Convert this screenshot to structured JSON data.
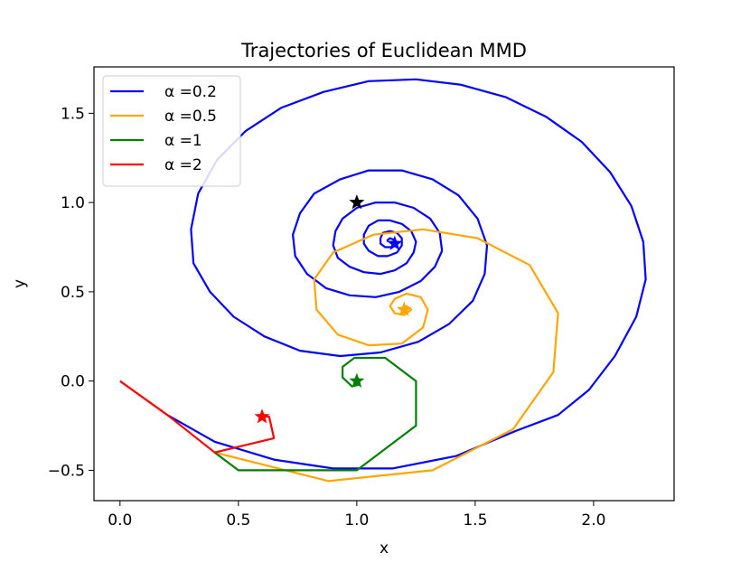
{
  "chart_data": {
    "type": "line",
    "title": "Trajectories of Euclidean MMD",
    "xlabel": "x",
    "ylabel": "y",
    "xlim": [
      -0.11,
      2.34
    ],
    "ylim": [
      -0.67,
      1.76
    ],
    "xticks": [
      0.0,
      0.5,
      1.0,
      1.5,
      2.0
    ],
    "xtick_labels": [
      "0.0",
      "0.5",
      "1.0",
      "1.5",
      "2.0"
    ],
    "yticks": [
      -0.5,
      0.0,
      0.5,
      1.0,
      1.5
    ],
    "ytick_labels": [
      "−0.5",
      "0.0",
      "0.5",
      "1.0",
      "1.5"
    ],
    "grid": false,
    "legend_position": "top-left",
    "series": [
      {
        "name": "α =0.2",
        "color": "#0000ff",
        "points": [
          [
            0.2,
            -0.19
          ],
          [
            0.4,
            -0.34
          ],
          [
            0.65,
            -0.44
          ],
          [
            0.9,
            -0.49
          ],
          [
            1.15,
            -0.49
          ],
          [
            1.42,
            -0.42
          ],
          [
            1.67,
            -0.28
          ],
          [
            1.85,
            -0.19
          ],
          [
            1.98,
            -0.05
          ],
          [
            2.09,
            0.14
          ],
          [
            2.18,
            0.36
          ],
          [
            2.22,
            0.57
          ],
          [
            2.21,
            0.78
          ],
          [
            2.16,
            0.98
          ],
          [
            2.07,
            1.17
          ],
          [
            1.95,
            1.34
          ],
          [
            1.8,
            1.48
          ],
          [
            1.63,
            1.59
          ],
          [
            1.44,
            1.66
          ],
          [
            1.25,
            1.69
          ],
          [
            1.05,
            1.68
          ],
          [
            0.86,
            1.62
          ],
          [
            0.68,
            1.53
          ],
          [
            0.53,
            1.4
          ],
          [
            0.41,
            1.24
          ],
          [
            0.33,
            1.05
          ],
          [
            0.3,
            0.85
          ],
          [
            0.31,
            0.66
          ],
          [
            0.38,
            0.5
          ],
          [
            0.48,
            0.36
          ],
          [
            0.61,
            0.25
          ],
          [
            0.76,
            0.17
          ],
          [
            0.93,
            0.14
          ],
          [
            1.1,
            0.16
          ],
          [
            1.26,
            0.22
          ],
          [
            1.39,
            0.32
          ],
          [
            1.49,
            0.45
          ],
          [
            1.54,
            0.6
          ],
          [
            1.55,
            0.76
          ],
          [
            1.51,
            0.91
          ],
          [
            1.43,
            1.04
          ],
          [
            1.32,
            1.13
          ],
          [
            1.19,
            1.18
          ],
          [
            1.05,
            1.18
          ],
          [
            0.93,
            1.13
          ],
          [
            0.82,
            1.05
          ],
          [
            0.76,
            0.94
          ],
          [
            0.73,
            0.82
          ],
          [
            0.74,
            0.7
          ],
          [
            0.79,
            0.6
          ],
          [
            0.87,
            0.52
          ],
          [
            0.97,
            0.48
          ],
          [
            1.08,
            0.47
          ],
          [
            1.18,
            0.5
          ],
          [
            1.27,
            0.56
          ],
          [
            1.33,
            0.64
          ],
          [
            1.36,
            0.73
          ],
          [
            1.35,
            0.83
          ],
          [
            1.31,
            0.91
          ],
          [
            1.24,
            0.97
          ],
          [
            1.16,
            1.0
          ],
          [
            1.08,
            1.0
          ],
          [
            1.0,
            0.97
          ],
          [
            0.94,
            0.91
          ],
          [
            0.91,
            0.84
          ],
          [
            0.9,
            0.76
          ],
          [
            0.92,
            0.69
          ],
          [
            0.97,
            0.64
          ],
          [
            1.03,
            0.61
          ],
          [
            1.1,
            0.6
          ],
          [
            1.16,
            0.62
          ],
          [
            1.21,
            0.66
          ],
          [
            1.24,
            0.72
          ],
          [
            1.25,
            0.78
          ],
          [
            1.23,
            0.84
          ],
          [
            1.19,
            0.88
          ],
          [
            1.14,
            0.9
          ],
          [
            1.09,
            0.9
          ],
          [
            1.05,
            0.87
          ],
          [
            1.03,
            0.82
          ],
          [
            1.03,
            0.77
          ],
          [
            1.05,
            0.73
          ],
          [
            1.09,
            0.7
          ],
          [
            1.13,
            0.7
          ],
          [
            1.17,
            0.72
          ],
          [
            1.19,
            0.76
          ],
          [
            1.19,
            0.8
          ],
          [
            1.17,
            0.83
          ],
          [
            1.14,
            0.84
          ],
          [
            1.11,
            0.83
          ],
          [
            1.1,
            0.8
          ],
          [
            1.1,
            0.77
          ],
          [
            1.12,
            0.75
          ],
          [
            1.15,
            0.75
          ],
          [
            1.16,
            0.77
          ],
          [
            1.16,
            0.79
          ],
          [
            1.14,
            0.8
          ],
          [
            1.13,
            0.79
          ],
          [
            1.13,
            0.78
          ]
        ],
        "marker": [
          1.16,
          0.77
        ]
      },
      {
        "name": "α =0.5",
        "color": "#ffa500",
        "points": [
          [
            0.4,
            -0.4
          ],
          [
            0.88,
            -0.56
          ],
          [
            1.32,
            -0.5
          ],
          [
            1.66,
            -0.27
          ],
          [
            1.83,
            0.05
          ],
          [
            1.85,
            0.38
          ],
          [
            1.73,
            0.65
          ],
          [
            1.51,
            0.8
          ],
          [
            1.28,
            0.85
          ],
          [
            1.07,
            0.82
          ],
          [
            0.9,
            0.72
          ],
          [
            0.82,
            0.57
          ],
          [
            0.83,
            0.4
          ],
          [
            0.92,
            0.26
          ],
          [
            1.05,
            0.2
          ],
          [
            1.19,
            0.21
          ],
          [
            1.28,
            0.3
          ],
          [
            1.3,
            0.4
          ],
          [
            1.27,
            0.47
          ],
          [
            1.21,
            0.49
          ],
          [
            1.16,
            0.46
          ],
          [
            1.14,
            0.42
          ],
          [
            1.16,
            0.38
          ],
          [
            1.2,
            0.37
          ],
          [
            1.23,
            0.4
          ],
          [
            1.21,
            0.42
          ],
          [
            1.2,
            0.41
          ]
        ],
        "marker": [
          1.2,
          0.4
        ]
      },
      {
        "name": "α =1",
        "color": "#008000",
        "points": [
          [
            0.4,
            -0.4
          ],
          [
            0.5,
            -0.5
          ],
          [
            1.0,
            -0.5
          ],
          [
            1.25,
            -0.25
          ],
          [
            1.25,
            0.0
          ],
          [
            1.12,
            0.13
          ],
          [
            0.99,
            0.13
          ],
          [
            0.94,
            0.08
          ],
          [
            0.94,
            0.02
          ],
          [
            0.98,
            -0.03
          ],
          [
            1.01,
            -0.02
          ],
          [
            1.0,
            0.0
          ]
        ],
        "marker": [
          1.0,
          0.0
        ]
      },
      {
        "name": "α =2",
        "color": "#ff0000",
        "points": [
          [
            0.0,
            0.0
          ],
          [
            0.2,
            -0.19
          ],
          [
            0.4,
            -0.4
          ],
          [
            0.65,
            -0.32
          ],
          [
            0.63,
            -0.2
          ],
          [
            0.6,
            -0.2
          ]
        ],
        "marker": [
          0.6,
          -0.2
        ]
      }
    ],
    "start_marker": {
      "color": "#000000",
      "point": [
        1.0,
        1.0
      ]
    }
  }
}
